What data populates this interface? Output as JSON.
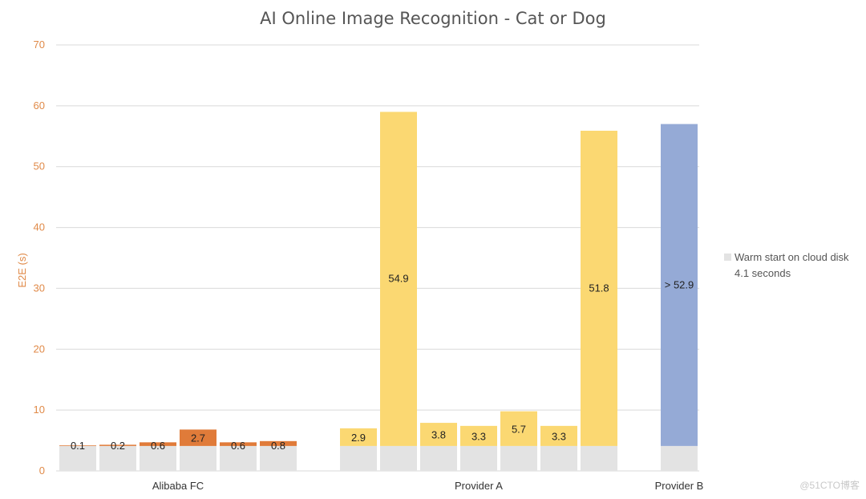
{
  "chart_data": {
    "type": "bar",
    "stacked": true,
    "title": "AI Online Image Recognition - Cat or Dog",
    "ylabel": "E2E (s)",
    "xlabel": "",
    "ylim": [
      0,
      70
    ],
    "yticks": [
      0,
      10,
      20,
      30,
      40,
      50,
      60,
      70
    ],
    "grid": true,
    "groups": [
      {
        "label": "Alibaba FC",
        "values": [
          0.1,
          0.2,
          0.6,
          2.7,
          0.6,
          0.8
        ]
      },
      {
        "label": "Provider A",
        "values": [
          2.9,
          54.9,
          3.8,
          3.3,
          5.7,
          3.3,
          51.8
        ]
      },
      {
        "label": "Provider B",
        "values": [
          52.9
        ]
      }
    ],
    "data_labels": {
      "Alibaba FC": [
        "0.1",
        "0.2",
        "0.6",
        "2.7",
        "0.6",
        "0.8"
      ],
      "Provider A": [
        "2.9",
        "54.9",
        "3.8",
        "3.3",
        "5.7",
        "3.3",
        "51.8"
      ],
      "Provider B": [
        "> 52.9"
      ]
    },
    "base": {
      "value": 4.1
    },
    "legend": {
      "text": "Warm start on cloud disk",
      "subtext": "4.1 seconds",
      "placement": "right"
    },
    "colors": {
      "base": "#e3e3e3",
      "Alibaba FC": "#e07b39",
      "Provider A": "#fbd872",
      "Provider B": "#95aad6",
      "grid": "#d9d9d9",
      "axis_text": "#e08a48"
    }
  },
  "watermark": "@51CTO博客"
}
